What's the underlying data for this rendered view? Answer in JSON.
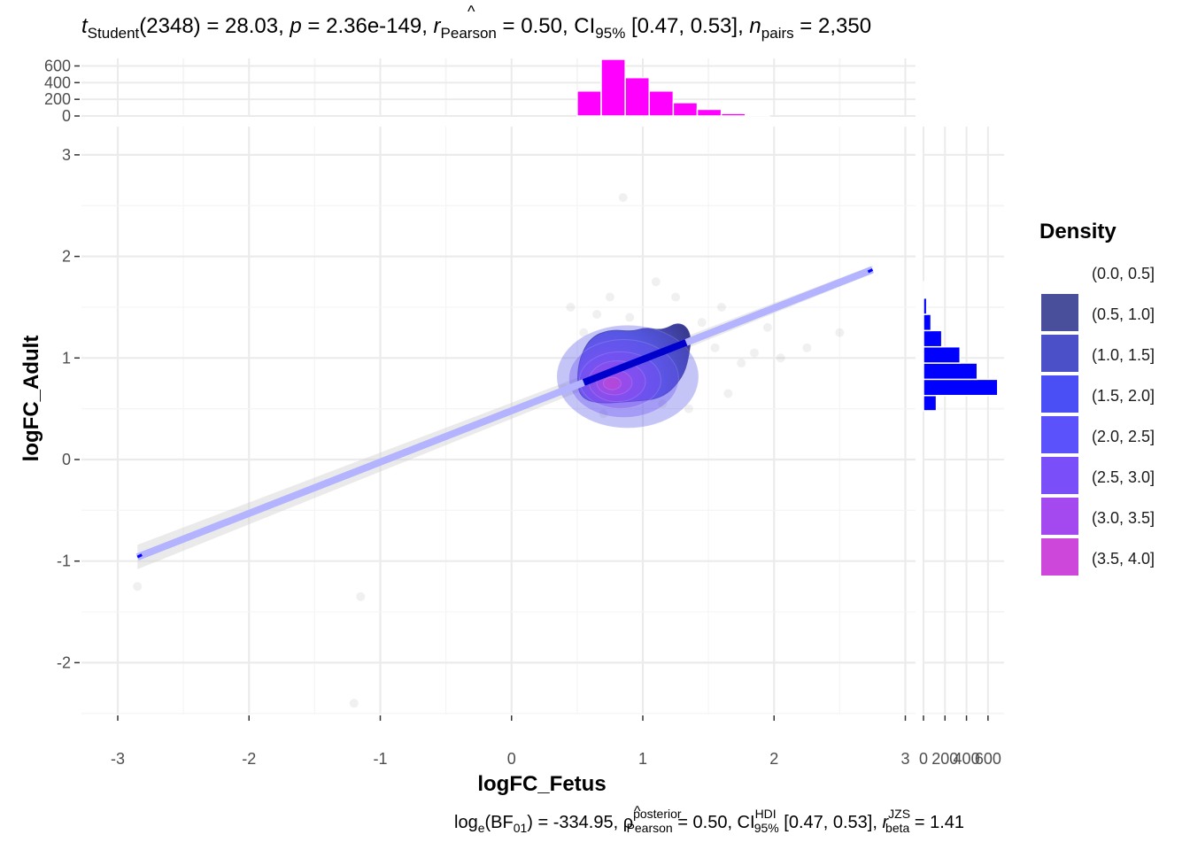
{
  "subtitle_top": {
    "t_symbol": "t",
    "t_sub": "Student",
    "df_text": "(2348) = 28.03, ",
    "p_symbol": "p",
    "p_text": " = 2.36e-149, ",
    "r_symbol": "r",
    "r_sub": "Pearson",
    "r_text": " = 0.50, CI",
    "ci_sub": "95%",
    "ci_text": " [0.47, 0.53], ",
    "n_symbol": "n",
    "n_sub": "pairs",
    "n_text": " = 2,350"
  },
  "caption_bottom": {
    "log_text": "log",
    "log_sub": "e",
    "bf_open": "(BF",
    "bf_sub": "01",
    "bf_close": ") = -334.95, ",
    "rho_symbol": "ρ",
    "rho_sup": "posterior",
    "rho_sub": "Pearson",
    "rho_text": " = 0.50, CI",
    "ci_sup": "HDI",
    "ci_sub": "95%",
    "ci_text": " [0.47, 0.53], ",
    "r_symbol": "r",
    "r_sup": "JZS",
    "r_sub": "beta",
    "r_text": " = 1.41"
  },
  "chart_data": {
    "type": "scatter",
    "xlabel": "logFC_Fetus",
    "ylabel": "logFC_Adult",
    "xlim": [
      -3.3,
      3.05
    ],
    "ylim": [
      -2.5,
      3.3
    ],
    "x_ticks": [
      -3,
      -2,
      -1,
      0,
      1,
      2,
      3
    ],
    "x_tick_labels": [
      "-3",
      "-2",
      "-1",
      "0",
      "1",
      "2",
      "3"
    ],
    "y_ticks": [
      -2,
      -1,
      0,
      1,
      2,
      3
    ],
    "y_tick_labels": [
      "-2",
      "-1",
      "0",
      "1",
      "2",
      "3"
    ],
    "grid": true,
    "regression": {
      "x_start": -2.85,
      "y_start": -0.96,
      "x_end": 2.75,
      "y_end": 1.87,
      "ci_start": 0.12,
      "ci_end": 0.04,
      "color": "#b3b3ff",
      "end_color": "#0000ff"
    },
    "points": [
      [
        0.85,
        2.58
      ],
      [
        0.65,
        1.43
      ],
      [
        0.55,
        1.25
      ],
      [
        1.45,
        1.35
      ],
      [
        1.55,
        1.1
      ],
      [
        1.75,
        0.95
      ],
      [
        1.25,
        1.6
      ],
      [
        1.85,
        1.05
      ],
      [
        2.05,
        1.0
      ],
      [
        2.25,
        1.1
      ],
      [
        1.35,
        0.5
      ],
      [
        0.45,
        1.5
      ],
      [
        0.9,
        1.4
      ],
      [
        1.6,
        1.5
      ],
      [
        0.4,
        0.7
      ],
      [
        1.1,
        1.75
      ],
      [
        0.75,
        1.6
      ],
      [
        1.95,
        1.3
      ],
      [
        1.15,
        0.55
      ],
      [
        2.5,
        1.25
      ],
      [
        -2.85,
        -1.25
      ],
      [
        -1.15,
        -1.35
      ],
      [
        -1.2,
        -2.4
      ],
      [
        0.7,
        0.45
      ],
      [
        1.65,
        0.65
      ]
    ],
    "density_contour": {
      "color_low": "#2e2f87",
      "color_high": "#d946c8",
      "peak": [
        0.75,
        0.74
      ],
      "outer": [
        [
          0.52,
          0.62
        ],
        [
          0.65,
          0.55
        ],
        [
          0.9,
          0.57
        ],
        [
          1.15,
          0.6
        ],
        [
          1.3,
          0.8
        ],
        [
          1.35,
          1.0
        ],
        [
          1.37,
          1.25
        ],
        [
          1.28,
          1.36
        ],
        [
          1.15,
          1.27
        ],
        [
          1.02,
          1.3
        ],
        [
          0.92,
          1.26
        ],
        [
          0.75,
          1.28
        ],
        [
          0.6,
          1.2
        ],
        [
          0.52,
          1.0
        ],
        [
          0.5,
          0.8
        ]
      ]
    },
    "top_histogram": {
      "color": "#ff00ff",
      "y_ticks": [
        0,
        200,
        400,
        600
      ],
      "y_tick_labels": [
        "0",
        "200",
        "400",
        "600"
      ],
      "y_max": 690,
      "bins": [
        {
          "x0": 0.5,
          "x1": 0.683,
          "count": 300
        },
        {
          "x0": 0.683,
          "x1": 0.866,
          "count": 680
        },
        {
          "x0": 0.866,
          "x1": 1.049,
          "count": 460
        },
        {
          "x0": 1.049,
          "x1": 1.232,
          "count": 300
        },
        {
          "x0": 1.232,
          "x1": 1.415,
          "count": 160
        },
        {
          "x0": 1.415,
          "x1": 1.598,
          "count": 80
        },
        {
          "x0": 1.598,
          "x1": 1.781,
          "count": 30
        },
        {
          "x0": 1.781,
          "x1": 1.964,
          "count": 10
        }
      ]
    },
    "right_histogram": {
      "color": "#0000ff",
      "x_ticks": [
        0,
        200,
        400,
        600
      ],
      "x_tick_labels": [
        "0",
        "200",
        "400",
        "600"
      ],
      "x_max": 700,
      "bins": [
        {
          "y0": 0.48,
          "y1": 0.63,
          "count": 120
        },
        {
          "y0": 0.63,
          "y1": 0.79,
          "count": 690
        },
        {
          "y0": 0.79,
          "y1": 0.95,
          "count": 500
        },
        {
          "y0": 0.95,
          "y1": 1.11,
          "count": 340
        },
        {
          "y0": 1.11,
          "y1": 1.27,
          "count": 170
        },
        {
          "y0": 1.27,
          "y1": 1.43,
          "count": 70
        },
        {
          "y0": 1.43,
          "y1": 1.59,
          "count": 30
        },
        {
          "y0": 1.59,
          "y1": 1.75,
          "count": 10
        }
      ]
    },
    "legend": {
      "title": "Density",
      "placement": "right",
      "entries": [
        {
          "label": "(0.0, 0.5]",
          "color": "#ffffff"
        },
        {
          "label": "(0.5, 1.0]",
          "color": "#4a4f9b"
        },
        {
          "label": "(1.0, 1.5]",
          "color": "#4b50c9"
        },
        {
          "label": "(1.5, 2.0]",
          "color": "#4a4ff5"
        },
        {
          "label": "(2.0, 2.5]",
          "color": "#5c52fb"
        },
        {
          "label": "(2.5, 3.0]",
          "color": "#7a4ef8"
        },
        {
          "label": "(3.0, 3.5]",
          "color": "#a449f0"
        },
        {
          "label": "(3.5, 4.0]",
          "color": "#cd47da"
        }
      ]
    }
  }
}
